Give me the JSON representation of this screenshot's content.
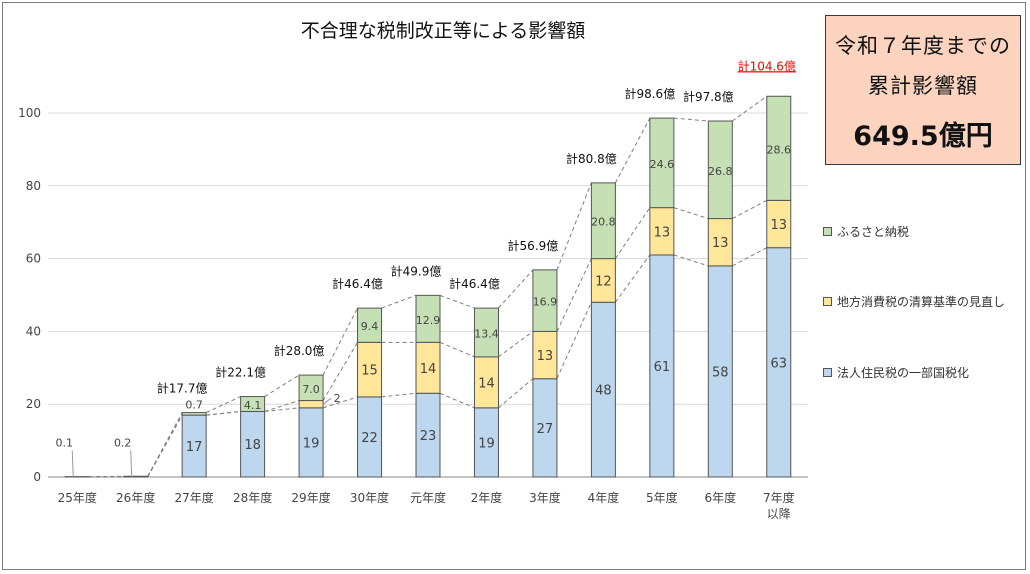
{
  "chart_data": {
    "type": "bar",
    "stacked": true,
    "title": "不合理な税制改正等による影響額",
    "categories": [
      "25年度",
      "26年度",
      "27年度",
      "28年度",
      "29年度",
      "30年度",
      "元年度",
      "2年度",
      "3年度",
      "4年度",
      "5年度",
      "6年度",
      "7年度\n以降"
    ],
    "ylim": [
      0,
      100
    ],
    "yticks": [
      0,
      20,
      40,
      60,
      80,
      100
    ],
    "grid": true,
    "legend_position": "right",
    "series": [
      {
        "name": "法人住民税の一部国税化",
        "color": "#bdd7ee",
        "values": [
          0,
          0,
          17,
          18,
          19,
          22,
          23,
          19,
          27,
          48,
          61,
          58,
          63
        ],
        "labels": [
          "",
          "",
          "17",
          "18",
          "19",
          "22",
          "23",
          "19",
          "27",
          "48",
          "61",
          "58",
          "63"
        ]
      },
      {
        "name": "地方消費税の清算基準の見直し",
        "color": "#ffe699",
        "values": [
          0,
          0,
          0,
          0,
          2,
          15,
          14,
          14,
          13,
          12,
          13,
          13,
          13
        ],
        "labels": [
          "",
          "",
          "",
          "",
          "2",
          "15",
          "14",
          "14",
          "13",
          "12",
          "13",
          "13",
          "13"
        ]
      },
      {
        "name": "ふるさと納税",
        "color": "#c5e0b4",
        "values": [
          0.1,
          0.2,
          0.7,
          4.1,
          7.0,
          9.4,
          12.9,
          13.4,
          16.9,
          20.8,
          24.6,
          26.8,
          28.6
        ],
        "labels": [
          "0.1",
          "0.2",
          "0.7",
          "4.1",
          "7.0",
          "9.4",
          "12.9",
          "13.4",
          "16.9",
          "20.8",
          "24.6",
          "26.8",
          "28.6"
        ]
      }
    ],
    "totals": [
      "",
      "",
      "計17.7億",
      "計22.1億",
      "計28.0億",
      "計46.4億",
      "計49.9億",
      "計46.4億",
      "計56.9億",
      "計80.8億",
      "計98.6億",
      "計97.8億",
      "計104.6億"
    ],
    "total_highlight_color": "#ff0000"
  },
  "summary": {
    "line1": "令和７年度までの",
    "line2": "累計影響額",
    "value": "649.5億円"
  },
  "legend": [
    {
      "label": "ふるさと納税",
      "color": "#c5e0b4"
    },
    {
      "label": "地方消費税の清算基準の見直し",
      "color": "#ffe699"
    },
    {
      "label": "法人住民税の一部国税化",
      "color": "#bdd7ee"
    }
  ]
}
